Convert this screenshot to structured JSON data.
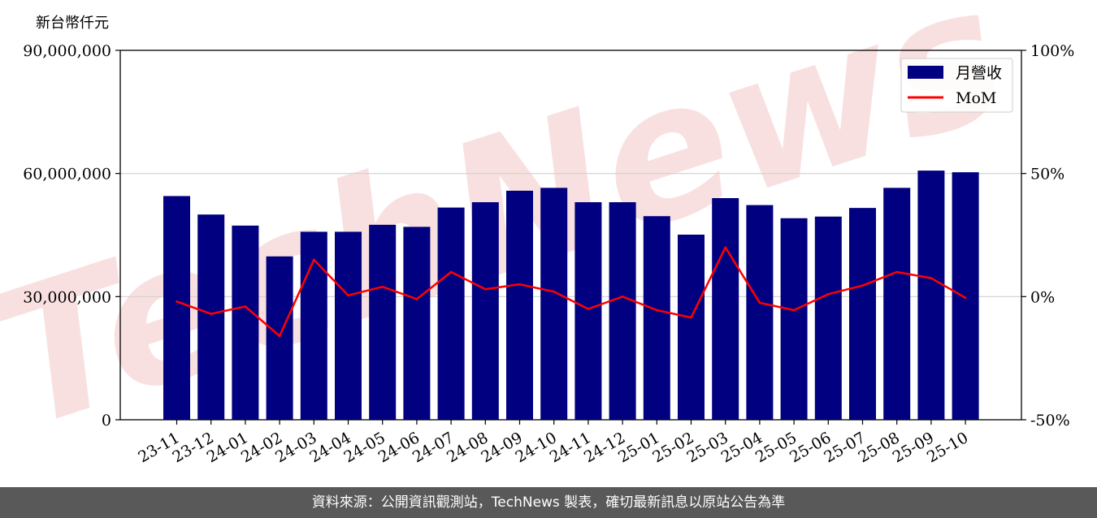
{
  "unit_label": "新台幣仟元",
  "footer_text": "資料來源：公開資訊觀測站，TechNews 製表，確切最新訊息以原站公告為準",
  "watermark": "TechNews",
  "colors": {
    "bar": "#000080",
    "line": "#ff0000",
    "grid": "#d0d0d0",
    "footer_bg": "#595959",
    "watermark": "#f4c6c6"
  },
  "chart_data": {
    "type": "bar",
    "categories": [
      "23-11",
      "23-12",
      "24-01",
      "24-02",
      "24-03",
      "24-04",
      "24-05",
      "24-06",
      "24-07",
      "24-08",
      "24-09",
      "24-10",
      "24-11",
      "24-12",
      "25-01",
      "25-02",
      "25-03",
      "25-04",
      "25-05",
      "25-06",
      "25-07",
      "25-08",
      "25-09",
      "25-10"
    ],
    "series": [
      {
        "name": "月營收",
        "type": "bar",
        "axis": "left",
        "values": [
          54500000,
          50000000,
          47300000,
          39800000,
          45800000,
          45800000,
          47500000,
          47000000,
          51700000,
          53000000,
          55800000,
          56500000,
          53000000,
          53000000,
          49600000,
          45100000,
          54000000,
          52300000,
          49100000,
          49500000,
          51600000,
          56500000,
          60700000,
          60300000
        ]
      },
      {
        "name": "MoM",
        "type": "line",
        "axis": "right",
        "values": [
          -2,
          -7,
          -4,
          -16,
          15,
          0.5,
          4,
          -1,
          10,
          3,
          5,
          2,
          -5,
          0,
          -5.5,
          -8.5,
          20,
          -2.5,
          -5.5,
          1,
          4.5,
          10,
          7.5,
          -0.5
        ]
      }
    ],
    "left_axis": {
      "ylim": [
        0,
        90000000
      ],
      "ticks": [
        "0",
        "30,000,000",
        "60,000,000",
        "90,000,000"
      ]
    },
    "right_axis": {
      "ylim": [
        -50,
        100
      ],
      "ticks": [
        "-50%",
        "0%",
        "50%",
        "100%"
      ]
    },
    "grid": true,
    "legend_position": "top-right"
  }
}
